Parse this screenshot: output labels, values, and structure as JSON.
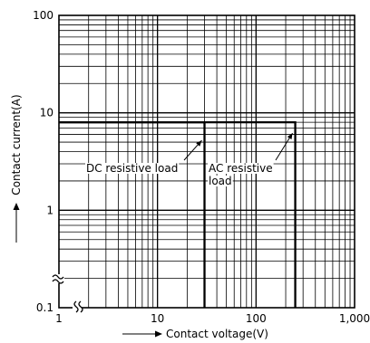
{
  "chart_data": {
    "type": "line",
    "title": "",
    "xlabel": "Contact voltage(V)",
    "ylabel": "Contact current(A)",
    "x_scale": "log",
    "y_scale": "log",
    "xlim": [
      1,
      1000
    ],
    "ylim": [
      0.1,
      100
    ],
    "grid": true,
    "x_ticks": [
      1,
      10,
      100,
      1000
    ],
    "x_tick_labels": [
      "1",
      "10",
      "100",
      "1,000"
    ],
    "y_ticks": [
      0.1,
      1,
      10,
      100
    ],
    "y_tick_labels": [
      "0.1",
      "1",
      "10",
      "100"
    ],
    "series": [
      {
        "name": "DC resistive load",
        "x": [
          1,
          30,
          30
        ],
        "y": [
          8,
          8,
          0.1
        ]
      },
      {
        "name": "AC resistive load",
        "x": [
          1,
          250,
          250
        ],
        "y": [
          8,
          8,
          0.1
        ]
      }
    ],
    "annotations": [
      {
        "text": "DC resistive load",
        "points_to": {
          "x": 30,
          "y": 8
        }
      },
      {
        "text": "AC resistive",
        "points_to": {
          "x": 250,
          "y": 8
        }
      },
      {
        "text": "load"
      }
    ]
  },
  "colors": {
    "background": "#ffffff",
    "ink": "#000000"
  },
  "icons": {
    "axis_break": "wavy-break-mark",
    "axis_arrow": "right-arrow"
  }
}
